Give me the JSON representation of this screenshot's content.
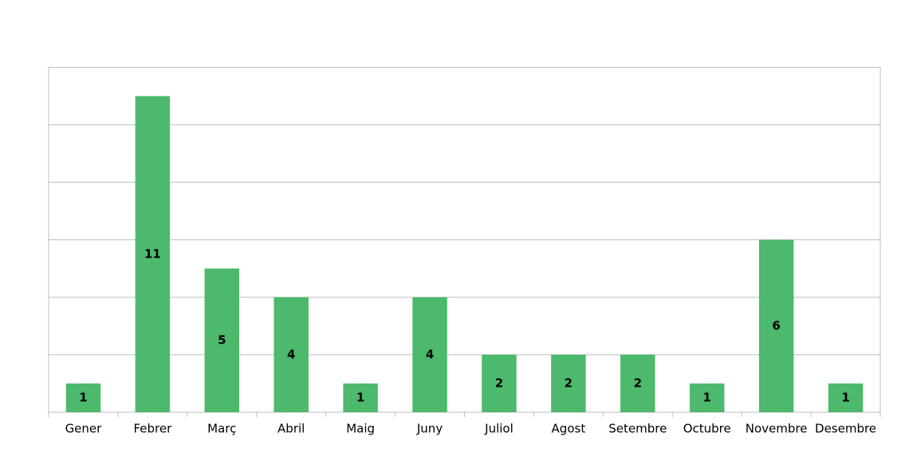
{
  "chart_data": {
    "type": "bar",
    "categories": [
      "Gener",
      "Febrer",
      "Març",
      "Abril",
      "Maig",
      "Juny",
      "Juliol",
      "Agost",
      "Setembre",
      "Octubre",
      "Novembre",
      "Desembre"
    ],
    "values": [
      1,
      11,
      5,
      4,
      1,
      4,
      2,
      2,
      2,
      1,
      6,
      1
    ],
    "color": "#4cb96c",
    "ylim": [
      0,
      12
    ],
    "yticks": [
      0,
      2,
      4,
      6,
      8,
      10,
      12
    ],
    "grid": true
  }
}
